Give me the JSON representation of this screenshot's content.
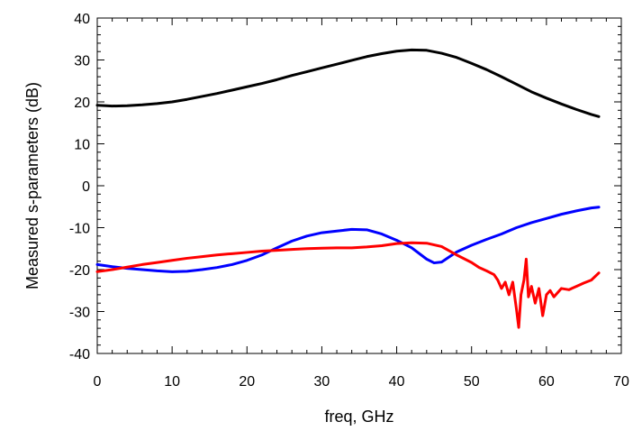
{
  "chart_data": {
    "type": "line",
    "title": "",
    "xlabel": "freq, GHz",
    "ylabel": "Measured s-parameters (dB)",
    "xlim": [
      0,
      70
    ],
    "ylim": [
      -40,
      40
    ],
    "x_ticks": [
      0,
      10,
      20,
      30,
      40,
      50,
      60,
      70
    ],
    "y_ticks": [
      -40,
      -30,
      -20,
      -10,
      0,
      10,
      20,
      30,
      40
    ],
    "grid": false,
    "legend": "none",
    "series": [
      {
        "color": "#000000",
        "points": [
          [
            0,
            19.2
          ],
          [
            2,
            19.0
          ],
          [
            4,
            19.1
          ],
          [
            6,
            19.3
          ],
          [
            8,
            19.6
          ],
          [
            10,
            20.0
          ],
          [
            12,
            20.6
          ],
          [
            14,
            21.3
          ],
          [
            16,
            22.0
          ],
          [
            18,
            22.8
          ],
          [
            20,
            23.6
          ],
          [
            22,
            24.4
          ],
          [
            24,
            25.3
          ],
          [
            26,
            26.3
          ],
          [
            28,
            27.2
          ],
          [
            30,
            28.1
          ],
          [
            32,
            29.0
          ],
          [
            34,
            29.9
          ],
          [
            36,
            30.8
          ],
          [
            38,
            31.5
          ],
          [
            40,
            32.1
          ],
          [
            42,
            32.4
          ],
          [
            44,
            32.3
          ],
          [
            46,
            31.6
          ],
          [
            48,
            30.6
          ],
          [
            50,
            29.2
          ],
          [
            52,
            27.7
          ],
          [
            54,
            26.0
          ],
          [
            56,
            24.2
          ],
          [
            58,
            22.4
          ],
          [
            60,
            20.9
          ],
          [
            62,
            19.5
          ],
          [
            64,
            18.2
          ],
          [
            66,
            17.0
          ],
          [
            67,
            16.5
          ]
        ]
      },
      {
        "color": "#0000ff",
        "points": [
          [
            0,
            -18.8
          ],
          [
            2,
            -19.3
          ],
          [
            4,
            -19.7
          ],
          [
            6,
            -20.0
          ],
          [
            8,
            -20.3
          ],
          [
            10,
            -20.5
          ],
          [
            12,
            -20.4
          ],
          [
            14,
            -20.0
          ],
          [
            16,
            -19.5
          ],
          [
            18,
            -18.8
          ],
          [
            20,
            -17.8
          ],
          [
            22,
            -16.5
          ],
          [
            24,
            -14.8
          ],
          [
            26,
            -13.2
          ],
          [
            28,
            -12.0
          ],
          [
            30,
            -11.2
          ],
          [
            32,
            -10.8
          ],
          [
            34,
            -10.4
          ],
          [
            36,
            -10.5
          ],
          [
            38,
            -11.5
          ],
          [
            40,
            -13.0
          ],
          [
            42,
            -14.8
          ],
          [
            44,
            -17.5
          ],
          [
            45,
            -18.4
          ],
          [
            46,
            -18.2
          ],
          [
            47,
            -17.0
          ],
          [
            48,
            -15.8
          ],
          [
            50,
            -14.2
          ],
          [
            52,
            -12.8
          ],
          [
            54,
            -11.5
          ],
          [
            56,
            -10.0
          ],
          [
            58,
            -8.8
          ],
          [
            60,
            -7.8
          ],
          [
            62,
            -6.8
          ],
          [
            64,
            -6.0
          ],
          [
            66,
            -5.3
          ],
          [
            67,
            -5.1
          ]
        ]
      },
      {
        "color": "#ff0000",
        "points": [
          [
            0,
            -20.5
          ],
          [
            2,
            -20.0
          ],
          [
            4,
            -19.4
          ],
          [
            6,
            -18.8
          ],
          [
            8,
            -18.3
          ],
          [
            10,
            -17.8
          ],
          [
            12,
            -17.3
          ],
          [
            14,
            -16.9
          ],
          [
            16,
            -16.5
          ],
          [
            18,
            -16.2
          ],
          [
            20,
            -15.9
          ],
          [
            22,
            -15.6
          ],
          [
            24,
            -15.4
          ],
          [
            26,
            -15.2
          ],
          [
            28,
            -15.0
          ],
          [
            30,
            -14.9
          ],
          [
            32,
            -14.8
          ],
          [
            34,
            -14.8
          ],
          [
            36,
            -14.6
          ],
          [
            38,
            -14.3
          ],
          [
            40,
            -13.8
          ],
          [
            42,
            -13.6
          ],
          [
            44,
            -13.7
          ],
          [
            46,
            -14.5
          ],
          [
            48,
            -16.5
          ],
          [
            50,
            -18.3
          ],
          [
            51,
            -19.5
          ],
          [
            52,
            -20.3
          ],
          [
            53,
            -21.2
          ],
          [
            53.5,
            -22.5
          ],
          [
            54,
            -24.5
          ],
          [
            54.5,
            -23.0
          ],
          [
            55,
            -26.0
          ],
          [
            55.5,
            -23.0
          ],
          [
            56,
            -29.5
          ],
          [
            56.3,
            -33.8
          ],
          [
            56.6,
            -26.0
          ],
          [
            57,
            -22.5
          ],
          [
            57.3,
            -17.5
          ],
          [
            57.6,
            -26.5
          ],
          [
            58,
            -24.0
          ],
          [
            58.5,
            -28.0
          ],
          [
            59,
            -24.5
          ],
          [
            59.5,
            -31.0
          ],
          [
            60,
            -26.0
          ],
          [
            60.5,
            -25.0
          ],
          [
            61,
            -26.5
          ],
          [
            62,
            -24.5
          ],
          [
            63,
            -24.8
          ],
          [
            64,
            -24.0
          ],
          [
            65,
            -23.2
          ],
          [
            66,
            -22.5
          ],
          [
            67,
            -20.8
          ]
        ]
      }
    ]
  }
}
